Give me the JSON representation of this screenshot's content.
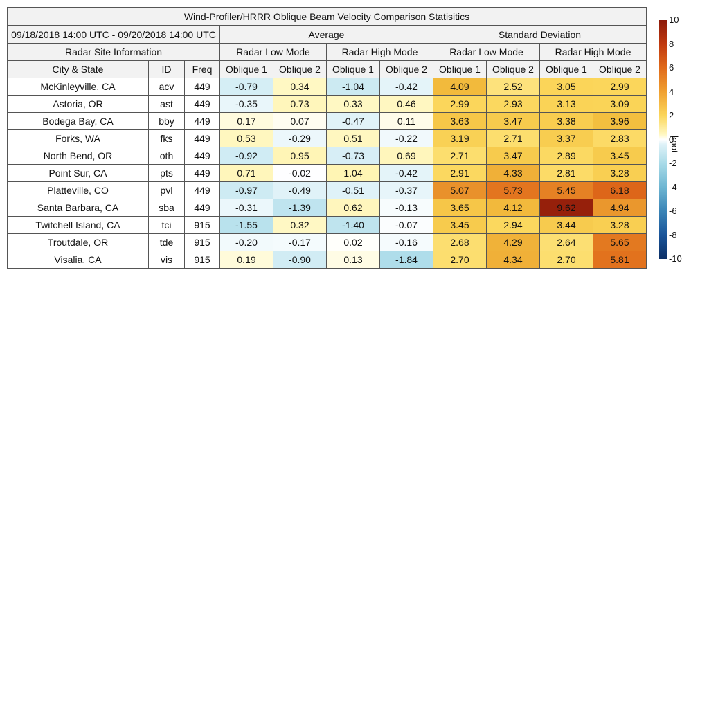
{
  "chart_data": {
    "type": "table",
    "title": "Wind-Profiler/HRRR Oblique Beam Velocity Comparison Statisitics",
    "date_range": "09/18/2018 14:00 UTC - 09/20/2018 14:00 UTC",
    "group_headers": {
      "average": "Average",
      "std": "Standard Deviation"
    },
    "site_header": "Radar Site Information",
    "mode_headers": [
      "Radar Low Mode",
      "Radar High Mode",
      "Radar Low Mode",
      "Radar High Mode"
    ],
    "columns": [
      "City & State",
      "ID",
      "Freq",
      "Oblique 1",
      "Oblique 2",
      "Oblique 1",
      "Oblique 2",
      "Oblique 1",
      "Oblique 2",
      "Oblique 1",
      "Oblique 2"
    ],
    "rows": [
      {
        "city": "McKinleyville, CA",
        "id": "acv",
        "freq": "449",
        "values": [
          "-0.79",
          "0.34",
          "-1.04",
          "-0.42",
          "4.09",
          "2.52",
          "3.05",
          "2.99"
        ]
      },
      {
        "city": "Astoria, OR",
        "id": "ast",
        "freq": "449",
        "values": [
          "-0.35",
          "0.73",
          "0.33",
          "0.46",
          "2.99",
          "2.93",
          "3.13",
          "3.09"
        ]
      },
      {
        "city": "Bodega Bay, CA",
        "id": "bby",
        "freq": "449",
        "values": [
          "0.17",
          "0.07",
          "-0.47",
          "0.11",
          "3.63",
          "3.47",
          "3.38",
          "3.96"
        ]
      },
      {
        "city": "Forks, WA",
        "id": "fks",
        "freq": "449",
        "values": [
          "0.53",
          "-0.29",
          "0.51",
          "-0.22",
          "3.19",
          "2.71",
          "3.37",
          "2.83"
        ]
      },
      {
        "city": "North Bend, OR",
        "id": "oth",
        "freq": "449",
        "values": [
          "-0.92",
          "0.95",
          "-0.73",
          "0.69",
          "2.71",
          "3.47",
          "2.89",
          "3.45"
        ]
      },
      {
        "city": "Point Sur, CA",
        "id": "pts",
        "freq": "449",
        "values": [
          "0.71",
          "-0.02",
          "1.04",
          "-0.42",
          "2.91",
          "4.33",
          "2.81",
          "3.28"
        ]
      },
      {
        "city": "Platteville, CO",
        "id": "pvl",
        "freq": "449",
        "values": [
          "-0.97",
          "-0.49",
          "-0.51",
          "-0.37",
          "5.07",
          "5.73",
          "5.45",
          "6.18"
        ]
      },
      {
        "city": "Santa Barbara, CA",
        "id": "sba",
        "freq": "449",
        "values": [
          "-0.31",
          "-1.39",
          "0.62",
          "-0.13",
          "3.65",
          "4.12",
          "9.62",
          "4.94"
        ]
      },
      {
        "city": "Twitchell Island, CA",
        "id": "tci",
        "freq": "915",
        "values": [
          "-1.55",
          "0.32",
          "-1.40",
          "-0.07",
          "3.45",
          "2.94",
          "3.44",
          "3.28"
        ]
      },
      {
        "city": "Troutdale, OR",
        "id": "tde",
        "freq": "915",
        "values": [
          "-0.20",
          "-0.17",
          "0.02",
          "-0.16",
          "2.68",
          "4.29",
          "2.64",
          "5.65"
        ]
      },
      {
        "city": "Visalia, CA",
        "id": "vis",
        "freq": "915",
        "values": [
          "0.19",
          "-0.90",
          "0.13",
          "-1.84",
          "2.70",
          "4.34",
          "2.70",
          "5.81"
        ]
      }
    ],
    "colorbar": {
      "range": [
        -10,
        10
      ],
      "ticks": [
        "10",
        "8",
        "6",
        "4",
        "2",
        "0",
        "-2",
        "-4",
        "-6",
        "-8",
        "-10"
      ],
      "label": "knot"
    }
  }
}
